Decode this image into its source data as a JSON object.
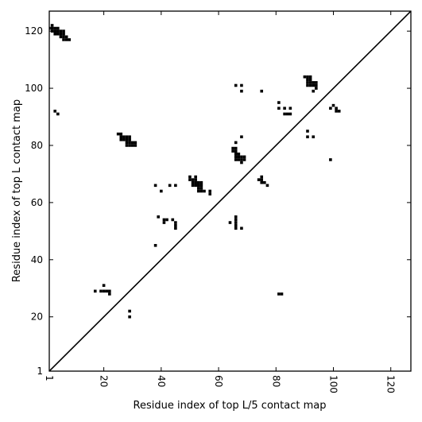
{
  "chart_data": {
    "type": "scatter",
    "title": "",
    "xlabel": "Residue index of top L/5 contact map",
    "ylabel": "Residue index of top L contact map",
    "xlim": [
      1,
      127
    ],
    "ylim": [
      1,
      127
    ],
    "x_ticks": [
      1,
      20,
      40,
      60,
      80,
      100,
      120
    ],
    "y_ticks": [
      1,
      20,
      40,
      60,
      80,
      100,
      120
    ],
    "x_tick_rotation": -90,
    "grid": false,
    "marker": "square",
    "marker_color": "#000000",
    "diagonal": {
      "from": [
        1,
        1
      ],
      "to": [
        127,
        127
      ],
      "color": "#000000"
    },
    "series": [
      {
        "name": "",
        "points": [
          [
            17,
            29
          ],
          [
            19,
            29
          ],
          [
            20,
            29
          ],
          [
            21,
            29
          ],
          [
            22,
            29
          ],
          [
            22,
            28
          ],
          [
            20,
            31
          ],
          [
            29,
            22
          ],
          [
            29,
            20
          ],
          [
            38,
            45
          ],
          [
            38,
            66
          ],
          [
            39,
            55
          ],
          [
            40,
            64
          ],
          [
            41,
            54
          ],
          [
            41,
            53
          ],
          [
            42,
            54
          ],
          [
            43,
            66
          ],
          [
            44,
            54
          ],
          [
            45,
            66
          ],
          [
            45,
            53
          ],
          [
            45,
            52
          ],
          [
            45,
            51
          ],
          [
            50,
            69
          ],
          [
            50,
            68
          ],
          [
            51,
            68
          ],
          [
            51,
            67
          ],
          [
            51,
            66
          ],
          [
            52,
            69
          ],
          [
            52,
            68
          ],
          [
            52,
            67
          ],
          [
            52,
            66
          ],
          [
            53,
            67
          ],
          [
            53,
            66
          ],
          [
            53,
            65
          ],
          [
            53,
            64
          ],
          [
            54,
            67
          ],
          [
            54,
            66
          ],
          [
            54,
            65
          ],
          [
            54,
            64
          ],
          [
            55,
            64
          ],
          [
            57,
            64
          ],
          [
            57,
            63
          ],
          [
            64,
            53
          ],
          [
            65,
            79
          ],
          [
            65,
            78
          ],
          [
            66,
            79
          ],
          [
            66,
            78
          ],
          [
            66,
            77
          ],
          [
            66,
            81
          ],
          [
            66,
            76
          ],
          [
            66,
            75
          ],
          [
            66,
            55
          ],
          [
            66,
            54
          ],
          [
            66,
            53
          ],
          [
            66,
            52
          ],
          [
            66,
            51
          ],
          [
            67,
            77
          ],
          [
            67,
            76
          ],
          [
            67,
            75
          ],
          [
            68,
            76
          ],
          [
            68,
            75
          ],
          [
            68,
            74
          ],
          [
            68,
            83
          ],
          [
            68,
            51
          ],
          [
            69,
            76
          ],
          [
            69,
            75
          ],
          [
            66,
            101
          ],
          [
            68,
            101
          ],
          [
            68,
            99
          ],
          [
            74,
            68
          ],
          [
            75,
            69
          ],
          [
            75,
            68
          ],
          [
            75,
            67
          ],
          [
            76,
            67
          ],
          [
            77,
            66
          ],
          [
            75,
            99
          ],
          [
            81,
            95
          ],
          [
            81,
            93
          ],
          [
            82,
            28
          ],
          [
            81,
            28
          ],
          [
            83,
            93
          ],
          [
            83,
            91
          ],
          [
            84,
            91
          ],
          [
            85,
            93
          ],
          [
            85,
            91
          ],
          [
            90,
            104
          ],
          [
            91,
            104
          ],
          [
            91,
            103
          ],
          [
            91,
            102
          ],
          [
            91,
            101
          ],
          [
            92,
            104
          ],
          [
            92,
            103
          ],
          [
            92,
            102
          ],
          [
            92,
            101
          ],
          [
            93,
            102
          ],
          [
            93,
            101
          ],
          [
            93,
            99
          ],
          [
            94,
            102
          ],
          [
            94,
            101
          ],
          [
            94,
            100
          ],
          [
            91,
            85
          ],
          [
            91,
            83
          ],
          [
            93,
            83
          ],
          [
            99,
            75
          ],
          [
            99,
            93
          ],
          [
            100,
            94
          ],
          [
            101,
            93
          ],
          [
            101,
            92
          ],
          [
            102,
            92
          ],
          [
            1,
            121
          ],
          [
            2,
            122
          ],
          [
            2,
            121
          ],
          [
            2,
            120
          ],
          [
            3,
            121
          ],
          [
            3,
            120
          ],
          [
            3,
            119
          ],
          [
            4,
            121
          ],
          [
            4,
            120
          ],
          [
            4,
            119
          ],
          [
            5,
            120
          ],
          [
            5,
            119
          ],
          [
            5,
            118
          ],
          [
            6,
            120
          ],
          [
            6,
            119
          ],
          [
            6,
            118
          ],
          [
            6,
            117
          ],
          [
            7,
            118
          ],
          [
            7,
            117
          ],
          [
            8,
            117
          ],
          [
            3,
            92
          ],
          [
            4,
            91
          ],
          [
            25,
            84
          ],
          [
            26,
            84
          ],
          [
            26,
            83
          ],
          [
            26,
            82
          ],
          [
            27,
            83
          ],
          [
            27,
            82
          ],
          [
            28,
            83
          ],
          [
            28,
            82
          ],
          [
            28,
            81
          ],
          [
            28,
            80
          ],
          [
            29,
            83
          ],
          [
            29,
            82
          ],
          [
            29,
            81
          ],
          [
            29,
            80
          ],
          [
            30,
            81
          ],
          [
            30,
            80
          ],
          [
            31,
            81
          ],
          [
            31,
            80
          ]
        ]
      }
    ]
  }
}
